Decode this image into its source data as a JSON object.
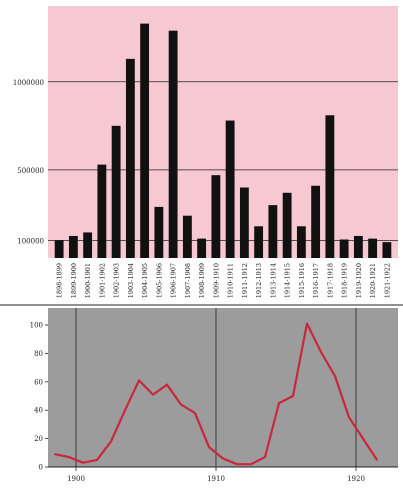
{
  "colors": {
    "top_panel_bg": "#f5c8d2",
    "bar_color": "#111111",
    "bottom_panel_bg": "#9c9c9c",
    "line_color": "#c8283c",
    "grid_color": "#222222"
  },
  "chart_data": [
    {
      "type": "bar",
      "title": "",
      "xlabel": "",
      "ylabel": "",
      "categories": [
        "1898-1899",
        "1899-1900",
        "1900-1901",
        "1901-1902",
        "1902-1903",
        "1903-1904",
        "1904-1905",
        "1905-1906",
        "1906-1907",
        "1907-1908",
        "1908-1909",
        "1909-1910",
        "1910-1911",
        "1911-1912",
        "1912-1913",
        "1913-1914",
        "1914-1915",
        "1915-1916",
        "1916-1917",
        "1917-1918",
        "1918-1919",
        "1919-1920",
        "1920-1921",
        "1921-1922"
      ],
      "values": [
        100000,
        125000,
        145000,
        530000,
        750000,
        1130000,
        1330000,
        290000,
        1290000,
        240000,
        110000,
        470000,
        780000,
        400000,
        180000,
        300000,
        370000,
        180000,
        410000,
        810000,
        105000,
        125000,
        110000,
        90000
      ],
      "yticks": [
        100000,
        500000,
        1000000
      ],
      "ytick_labels": [
        "100000",
        "500000",
        "1000000"
      ],
      "ylim": [
        0,
        1430000
      ],
      "grid": true
    },
    {
      "type": "line",
      "title": "",
      "xlabel": "",
      "ylabel": "",
      "x": [
        1898.5,
        1899.5,
        1900.5,
        1901.5,
        1902.5,
        1903.5,
        1904.5,
        1905.5,
        1906.5,
        1907.5,
        1908.5,
        1909.5,
        1910.5,
        1911.5,
        1912.5,
        1913.5,
        1914.5,
        1915.5,
        1916.5,
        1917.5,
        1918.5,
        1919.5,
        1920.5,
        1921.5
      ],
      "series": [
        {
          "values": [
            9,
            7,
            3,
            5,
            18,
            40,
            61,
            51,
            58,
            44,
            38,
            14,
            6,
            2,
            2,
            7,
            45,
            50,
            101,
            81,
            64,
            35,
            20,
            5
          ]
        }
      ],
      "xticks": [
        1900,
        1910,
        1920
      ],
      "xtick_labels": [
        "1900",
        "1910",
        "1920"
      ],
      "yticks": [
        0,
        20,
        40,
        60,
        80,
        100
      ],
      "ytick_labels": [
        "0",
        "20",
        "40",
        "60",
        "80",
        "100"
      ],
      "xlim": [
        1898,
        1923
      ],
      "ylim": [
        0,
        112
      ],
      "grid": true
    }
  ]
}
